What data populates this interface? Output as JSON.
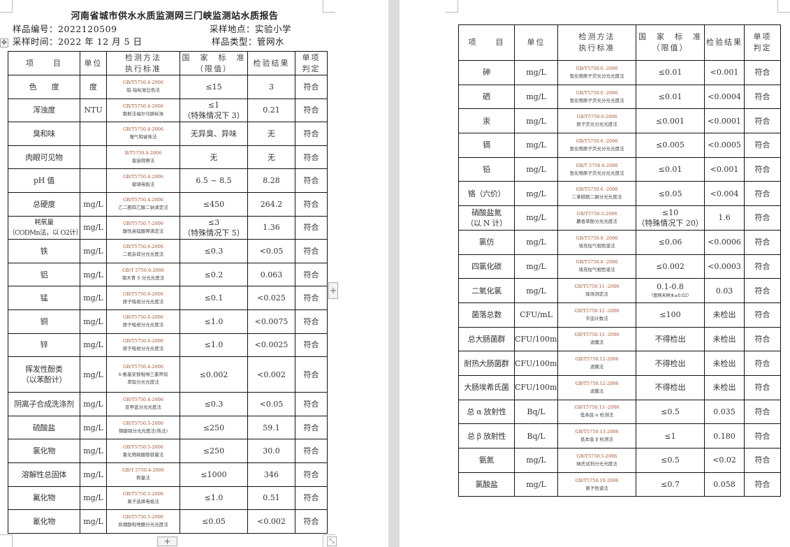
{
  "report": {
    "title": "河南省城市供水水质监测网三门峡监测站水质报告",
    "sample_no": "样品编号：2022120509",
    "sample_place": "采样地点：实验小学",
    "sample_time": "采样时间：2022 年 12 月 5 日",
    "sample_type": "样品类型：管网水"
  },
  "headers": [
    "项　　目",
    "单位",
    "检测方法\n执行标准",
    "国　家　标　准\n（限值）",
    "检验结果",
    "单项\n判定"
  ],
  "page1_rows": [
    {
      "item": "色　　度",
      "unit": "度",
      "method": [
        "GB/T5750.4-2006",
        "铂-钴标准比色法"
      ],
      "standard": "≤15",
      "result": "3",
      "verdict": "符合"
    },
    {
      "item": "浑浊度",
      "unit": "NTU",
      "method": [
        "GB/T5750.4-2006",
        "散射法福尔马肼标准"
      ],
      "standard": "≤1\n（特殊情况下 3）",
      "result": "0.21",
      "verdict": "符合"
    },
    {
      "item": "臭和味",
      "unit": "",
      "method": [
        "GB/T5750.4-2006",
        "嗅气和尝味法"
      ],
      "standard": "无异臭、异味",
      "result": "无",
      "verdict": "符合"
    },
    {
      "item": "肉眼可见物",
      "unit": "",
      "method": [
        "B/T5750.4-2006",
        "直接观察法"
      ],
      "standard": "无",
      "result": "无",
      "verdict": "符合"
    },
    {
      "item": "pH 值",
      "unit": "",
      "method": [
        "GB/T5750.4-2006",
        "玻璃电极法"
      ],
      "standard": "6.5 ~ 8.5",
      "result": "8.28",
      "verdict": "符合"
    },
    {
      "item": "总硬度",
      "unit": "mg/L",
      "method": [
        "GB/T5750.4-2006",
        "乙二胺四乙酸二钠滴定法"
      ],
      "standard": "≤450",
      "result": "264.2",
      "verdict": "符合"
    },
    {
      "item": "耗氧量\n（CODMn法，以 O2计）",
      "unit": "mg/L",
      "method": [
        "GB/T5750.7-2006",
        "酸性高锰酸钾滴定法"
      ],
      "standard": "≤3\n（特殊情况下 5）",
      "result": "1.36",
      "verdict": "符合"
    },
    {
      "item": "铁",
      "unit": "mg/L",
      "method": [
        "GB/T5750.6-2006",
        "二氮杂菲分光光度法"
      ],
      "standard": "≤0.3",
      "result": "<0.05",
      "verdict": "符合"
    },
    {
      "item": "铝",
      "unit": "mg/L",
      "method": [
        "GB/T 5750.6-2006",
        "铬天青 S 分光光度法"
      ],
      "standard": "≤0.2",
      "result": "0.063",
      "verdict": "符合"
    },
    {
      "item": "锰",
      "unit": "mg/L",
      "method": [
        "GB/T5750.6-2006",
        "原子吸收分光光度法"
      ],
      "standard": "≤0.1",
      "result": "<0.025",
      "verdict": "符合"
    },
    {
      "item": "铜",
      "unit": "mg/L",
      "method": [
        "GB/T5750.6-2006",
        "原子吸收分光光度法"
      ],
      "standard": "≤1.0",
      "result": "<0.0075",
      "verdict": "符合"
    },
    {
      "item": "锌",
      "unit": "mg/L",
      "method": [
        "GB/T5750.6-2006",
        "原子吸收分光光度法"
      ],
      "standard": "≤1.0",
      "result": "<0.0025",
      "verdict": "符合"
    },
    {
      "item": "挥发性酚类\n（以苯酚计）",
      "unit": "mg/L",
      "method": [
        "GB/T5750.4-2006",
        "4-氨基安替吡啉三氯甲烷",
        "萃取分光光度法"
      ],
      "standard": "≤0.002",
      "result": "<0.002",
      "verdict": "符合"
    },
    {
      "item": "阴离子合成洗涤剂",
      "unit": "mg/L",
      "method": [
        "GB/T5750.4-2006",
        "亚甲蓝分光光度法"
      ],
      "standard": "≤0.3",
      "result": "<0.05",
      "verdict": "符合"
    },
    {
      "item": "硫酸盐",
      "unit": "mg/L",
      "method": [
        "GB/T5750.5-2006",
        "铬酸钡分光光度法(热法)"
      ],
      "standard": "≤250",
      "result": "59.1",
      "verdict": "符合"
    },
    {
      "item": "氯化物",
      "unit": "mg/L",
      "method": [
        "GB/T5750.5-2006",
        "氯化物硝酸银容量法"
      ],
      "standard": "≤250",
      "result": "30.0",
      "verdict": "符合"
    },
    {
      "item": "溶解性总固体",
      "unit": "mg/L",
      "method": [
        "GB/T 5750.4-2006",
        "称量法"
      ],
      "standard": "≤1000",
      "result": "346",
      "verdict": "符合"
    },
    {
      "item": "氟化物",
      "unit": "mg/L",
      "method": [
        "GB/T5750.5-2006",
        "离子选择电极法"
      ],
      "standard": "≤1.0",
      "result": "0.51",
      "verdict": "符合"
    },
    {
      "item": "氰化物",
      "unit": "mg/L",
      "method": [
        "GB/T5750.5-2006",
        "异烟酸吡唑酮分光光度法"
      ],
      "standard": "≤0.05",
      "result": "<0.002",
      "verdict": "符合"
    }
  ],
  "page2_rows": [
    {
      "item": "砷",
      "unit": "mg/L",
      "method": [
        "GB/T5750.6 -2006",
        "氢化物原子荧光分光光度法"
      ],
      "standard": "≤0.01",
      "result": "<0.001",
      "verdict": "符合"
    },
    {
      "item": "硒",
      "unit": "mg/L",
      "method": [
        "GB/T5750.6 -2006",
        "氢化物原子荧光分光光度法"
      ],
      "standard": "≤0.01",
      "result": "<0.0004",
      "verdict": "符合"
    },
    {
      "item": "汞",
      "unit": "mg/L",
      "method": [
        "GB/T5750.6-2006",
        "原子荧光分光光度法"
      ],
      "standard": "≤0.001",
      "result": "<0.0001",
      "verdict": "符合"
    },
    {
      "item": "镉",
      "unit": "mg/L",
      "method": [
        "GB/T5750.6 -2006",
        "氢化物原子荧光分光光度法"
      ],
      "standard": "≤0.005",
      "result": "<0.0005",
      "verdict": "符合"
    },
    {
      "item": "铅",
      "unit": "mg/L",
      "method": [
        "GB/T 5750.6-2006",
        "氢化物原子荧光分光光度法"
      ],
      "standard": "≤0.01",
      "result": "<0.001",
      "verdict": "符合"
    },
    {
      "item": "铬（六价）",
      "unit": "mg/L",
      "method": [
        "GB/T5750.6 -2006",
        "二苯碳酰二肼分光光度法"
      ],
      "standard": "≤0.05",
      "result": "<0.004",
      "verdict": "符合"
    },
    {
      "item": "硝酸盐氮\n（以 N 计）",
      "unit": "mg/L",
      "method": [
        "GB/T5750.5-2006",
        "麝香草酚分光光度法"
      ],
      "standard": "≤10\n（特殊情况下 20）",
      "result": "1.6",
      "verdict": "符合"
    },
    {
      "item": "氯仿",
      "unit": "mg/L",
      "method": [
        "GB/T5750.8 -2006",
        "填充柱气相色谱法"
      ],
      "standard": "≤0.06",
      "result": "<0.0006",
      "verdict": "符合"
    },
    {
      "item": "四氯化碳",
      "unit": "mg/L",
      "method": [
        "GB/T5750.8 -2006",
        "填充柱气相色谱法"
      ],
      "standard": "≤0.002",
      "result": "<0.0003",
      "verdict": "符合"
    },
    {
      "item": "二氧化氯",
      "unit": "mg/L",
      "method": [
        "GB/T5750.11 -2006",
        "现场测定法"
      ],
      "standard": "0.1-0.8",
      "standard_note": "（管网末梢水≥0.02）",
      "result": "0.03",
      "verdict": "符合"
    },
    {
      "item": "菌落总数",
      "unit": "CFU/mL",
      "method": [
        "GB/T5750.12 -2006",
        "平皿计数法"
      ],
      "standard": "≤100",
      "result": "未检出",
      "verdict": "符合"
    },
    {
      "item": "总大肠菌群",
      "unit": "CFU/100mL",
      "method": [
        "GB/T5750.12 -2006",
        "滤膜法"
      ],
      "standard": "不得检出",
      "result": "未检出",
      "verdict": "符合"
    },
    {
      "item": "耐热大肠菌群",
      "unit": "CFU/100mL",
      "method": [
        "GB/T5750.12-2006",
        "滤膜法"
      ],
      "standard": "不得检出",
      "result": "未检出",
      "verdict": "符合"
    },
    {
      "item": "大肠埃希氏菌",
      "unit": "CFU/100mL",
      "method": [
        "GB/T5750.12-2006",
        "滤膜法"
      ],
      "standard": "不得检出",
      "result": "未检出",
      "verdict": "符合"
    },
    {
      "item": "总 α 放射性",
      "unit": "Bq/L",
      "method": [
        "GB/T5750.13 -2006",
        "低本底 α 检测法"
      ],
      "standard": "≤0.5",
      "result": "0.035",
      "verdict": "符合"
    },
    {
      "item": "总 β 放射性",
      "unit": "Bq/L",
      "method": [
        "GB/T5750.13-2006",
        "低本底 β 检测法"
      ],
      "standard": "≤1",
      "result": "0.180",
      "verdict": "符合"
    },
    {
      "item": "氨氮",
      "unit": "mg/L",
      "method": [
        "GB/T5750.5-2006",
        "纳氏试剂分光光度法"
      ],
      "standard": "≤0.5",
      "result": "<0.02",
      "verdict": "符合"
    },
    {
      "item": "氯酸盐",
      "unit": "mg/L",
      "method": [
        "GB/T5750.10-2006",
        "离子色谱法"
      ],
      "standard": "≤0.7",
      "result": "0.058",
      "verdict": "符合"
    }
  ],
  "controls": {
    "add_label": "+",
    "move_icon": "move-icon",
    "resize_icon": "resize-icon"
  }
}
